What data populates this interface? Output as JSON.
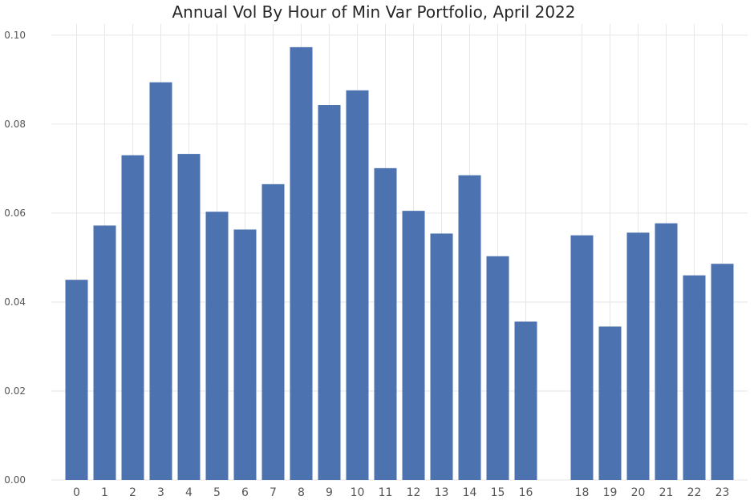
{
  "chart_data": {
    "type": "bar",
    "title": "Annual Vol By Hour of Min Var Portfolio, April 2022",
    "xlabel": "",
    "ylabel": "",
    "categories": [
      "0",
      "1",
      "2",
      "3",
      "4",
      "5",
      "6",
      "7",
      "8",
      "9",
      "10",
      "11",
      "12",
      "13",
      "14",
      "15",
      "16",
      "18",
      "19",
      "20",
      "21",
      "22",
      "23"
    ],
    "x": [
      0,
      1,
      2,
      3,
      4,
      5,
      6,
      7,
      8,
      9,
      10,
      11,
      12,
      13,
      14,
      15,
      16,
      18,
      19,
      20,
      21,
      22,
      23
    ],
    "values": [
      0.045,
      0.0572,
      0.073,
      0.0894,
      0.0733,
      0.0603,
      0.0563,
      0.0665,
      0.0973,
      0.0843,
      0.0876,
      0.0701,
      0.0605,
      0.0554,
      0.0685,
      0.0503,
      0.0356,
      0.055,
      0.0345,
      0.0556,
      0.0577,
      0.046,
      0.0486
    ],
    "ylim": [
      0,
      0.1025
    ],
    "xlim": [
      -0.9,
      23.9
    ],
    "yticks": [
      "0.00",
      "0.02",
      "0.04",
      "0.06",
      "0.08",
      "0.10"
    ],
    "grid": true,
    "bar_color": "#4c72b0",
    "grid_color": "#e6e6e6"
  }
}
